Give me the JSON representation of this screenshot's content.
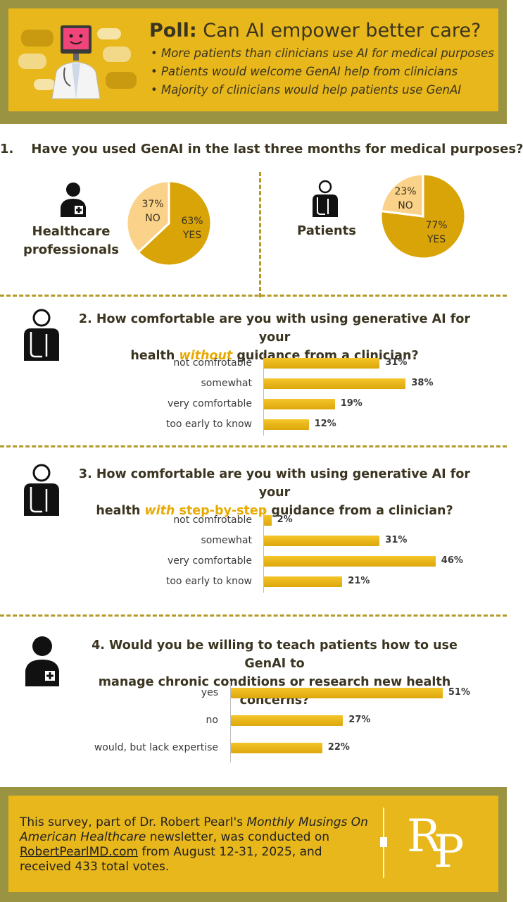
{
  "header": {
    "title_bold": "Poll:",
    "title_rest": "Can AI empower better care?",
    "bullets": [
      "• More patients than clinicians use AI for medical purposes",
      "• Patients would welcome GenAI help from clinicians",
      "• Majority of clinicians would help patients use GenAI"
    ]
  },
  "q1": {
    "title": "1.    Have you used GenAI in the last three months for medical purposes?",
    "professionals_label_1": "Healthcare",
    "professionals_label_2": "professionals",
    "patients_label": "Patients"
  },
  "q2": {
    "title_a": "2. How comfortable are you with using generative AI for your",
    "title_b1": "health ",
    "title_b_hl": "without",
    "title_b2": " guidance from a clinician?"
  },
  "q3": {
    "title_a": "3. How comfortable are you with using generative AI for your",
    "title_b1": "health ",
    "title_b_hl": "with",
    "title_b_hl2": " step-by-step",
    "title_b2": " guidance from a clinician?"
  },
  "q4": {
    "title_a": "4. Would you be willing to teach patients how to use GenAI to",
    "title_b": "manage chronic conditions or research new health concerns?"
  },
  "chart_data": [
    {
      "type": "pie",
      "title": "Healthcare professionals",
      "categories": [
        "YES",
        "NO"
      ],
      "values": [
        63,
        37
      ],
      "labels": [
        "63%",
        "37%"
      ]
    },
    {
      "type": "pie",
      "title": "Patients",
      "categories": [
        "YES",
        "NO"
      ],
      "values": [
        77,
        23
      ],
      "labels": [
        "77%",
        "23%"
      ]
    },
    {
      "type": "bar",
      "orientation": "horizontal",
      "title": "How comfortable are you with using generative AI for your health without guidance from a clinician?",
      "categories": [
        "not comfrotable",
        "somewhat",
        "very comfortable",
        "too early to know"
      ],
      "values": [
        31,
        38,
        19,
        12
      ],
      "labels": [
        "31%",
        "38%",
        "19%",
        "12%"
      ]
    },
    {
      "type": "bar",
      "orientation": "horizontal",
      "title": "How comfortable are you with using generative AI for your health with step-by-step guidance from a clinician?",
      "categories": [
        "not comfrotable",
        "somewhat",
        "very comfortable",
        "too early to know"
      ],
      "values": [
        2,
        31,
        46,
        21
      ],
      "labels": [
        "2%",
        "31%",
        "46%",
        "21%"
      ]
    },
    {
      "type": "bar",
      "orientation": "horizontal",
      "title": "Would you be willing to teach patients how to use GenAI to manage chronic conditions or research new health concerns?",
      "categories": [
        "yes",
        "no",
        "would, but lack expertise"
      ],
      "values": [
        51,
        27,
        22
      ],
      "labels": [
        "51%",
        "27%",
        "22%"
      ]
    }
  ],
  "footer": {
    "text_1": "This survey, part of Dr. Robert Pearl's ",
    "text_italic": "Monthly Musings On American Healthcare",
    "text_2": " newsletter, was conducted on ",
    "link": "RobertPearlMD.com",
    "text_3": " from August 12-31, 2025, and received 433 total votes.",
    "logo_r": "R",
    "logo_p": "P"
  },
  "colors": {
    "gold": "#e8b71b",
    "olive": "#9a9341",
    "pie_dark": "#d9a407",
    "pie_light": "#fbd289",
    "bar": "#eebd1d"
  }
}
